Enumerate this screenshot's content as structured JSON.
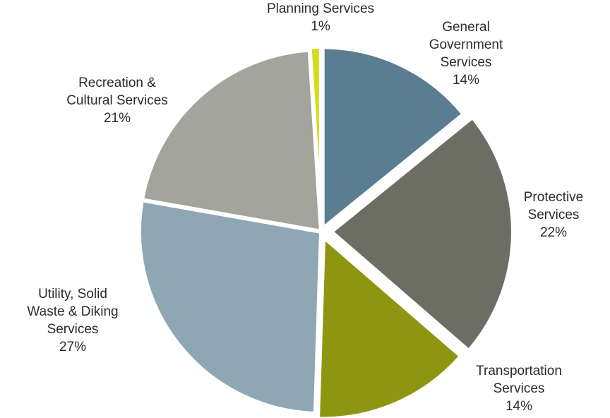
{
  "chart_data": {
    "type": "pie",
    "title": "",
    "legend": "none",
    "slices": [
      {
        "name": "General Government Services",
        "lines": [
          "General",
          "Government",
          "Services"
        ],
        "value": 14,
        "label": "14%",
        "color": "#5b7d92"
      },
      {
        "name": "Protective Services",
        "lines": [
          "Protective",
          "Services"
        ],
        "value": 22,
        "label": "22%",
        "color": "#6c6e63"
      },
      {
        "name": "Transportation Services",
        "lines": [
          "Transportation",
          "Services"
        ],
        "value": 14,
        "label": "14%",
        "color": "#8e9611"
      },
      {
        "name": "Utility, Solid Waste & Diking Services",
        "lines": [
          "Utility, Solid",
          "Waste & Diking",
          "Services"
        ],
        "value": 27,
        "label": "27%",
        "color": "#8fa6b5"
      },
      {
        "name": "Recreation & Cultural Services",
        "lines": [
          "Recreation &",
          "Cultural Services"
        ],
        "value": 21,
        "label": "21%",
        "color": "#a3a49b"
      },
      {
        "name": "Planning Services",
        "lines": [
          "Planning Services"
        ],
        "value": 1,
        "label": "1%",
        "color": "#d4dc1c"
      }
    ]
  }
}
